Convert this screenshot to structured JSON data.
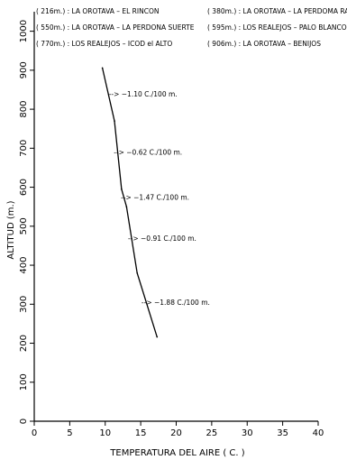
{
  "legend": [
    "( 216m.) : LA OROTAVA – EL RINCON",
    "( 380m.) : LA OROTAVA – LA PERDOMA RATINO",
    "( 550m.) : LA OROTAVA – LA PERDONA SUERTE",
    "( 595m.) : LOS REALEJOS – PALO BLANCO",
    "( 770m.) : LOS REALEJOS – ICOD el ALTO",
    "( 906m.) : LA OROTAVA – BENIJOS"
  ],
  "chart_data": {
    "type": "line",
    "title": "",
    "xlabel": "TEMPERATURA DEL AIRE (  C. )",
    "ylabel": "ALTITUD  (m.)",
    "xlim": [
      0,
      40
    ],
    "ylim": [
      0,
      1050
    ],
    "x_ticks": [
      0,
      5,
      10,
      15,
      20,
      25,
      30,
      35,
      40
    ],
    "y_ticks": [
      0,
      100,
      200,
      300,
      400,
      500,
      600,
      700,
      800,
      900,
      1000
    ],
    "grid": false,
    "series": [
      {
        "points": [
          {
            "x": 9.6,
            "y": 906
          },
          {
            "x": 11.3,
            "y": 770
          },
          {
            "x": 12.3,
            "y": 595
          },
          {
            "x": 13.0,
            "y": 550
          },
          {
            "x": 14.5,
            "y": 380
          },
          {
            "x": 17.3,
            "y": 216
          }
        ]
      }
    ],
    "annotations": [
      {
        "text": "--> −1.10  C./100 m.",
        "x": 10.5,
        "y": 840
      },
      {
        "text": "--> −0.62  C./100 m.",
        "x": 11.2,
        "y": 690
      },
      {
        "text": "--> −1.47  C./100 m.",
        "x": 12.2,
        "y": 575
      },
      {
        "text": "--> −0.91  C./100 m.",
        "x": 13.2,
        "y": 470
      },
      {
        "text": "--> −1.88  C./100 m.",
        "x": 15.1,
        "y": 305
      }
    ]
  }
}
